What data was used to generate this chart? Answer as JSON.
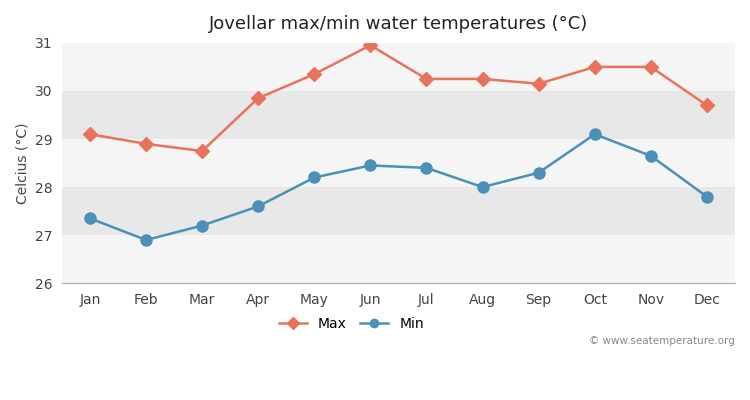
{
  "title": "Jovellar max/min water temperatures (°C)",
  "ylabel": "Celcius (°C)",
  "months": [
    "Jan",
    "Feb",
    "Mar",
    "Apr",
    "May",
    "Jun",
    "Jul",
    "Aug",
    "Sep",
    "Oct",
    "Nov",
    "Dec"
  ],
  "max_values": [
    29.1,
    28.9,
    28.75,
    29.85,
    30.35,
    30.95,
    30.25,
    30.25,
    30.15,
    30.5,
    30.5,
    29.7
  ],
  "min_values": [
    27.35,
    26.9,
    27.2,
    27.6,
    28.2,
    28.45,
    28.4,
    28.0,
    28.3,
    29.1,
    28.65,
    27.8
  ],
  "max_color": "#e8735a",
  "min_color": "#4a90b8",
  "fig_bg_color": "#ffffff",
  "plot_bg_color": "#ffffff",
  "band_color_dark": "#e8e8e8",
  "band_color_light": "#f5f5f5",
  "ylim": [
    26,
    31
  ],
  "yticks": [
    26,
    27,
    28,
    29,
    30,
    31
  ],
  "watermark": "© www.seatemperature.org",
  "marker_size_max": 7,
  "marker_size_min": 8,
  "line_width": 1.8,
  "legend_marker_size": 6
}
